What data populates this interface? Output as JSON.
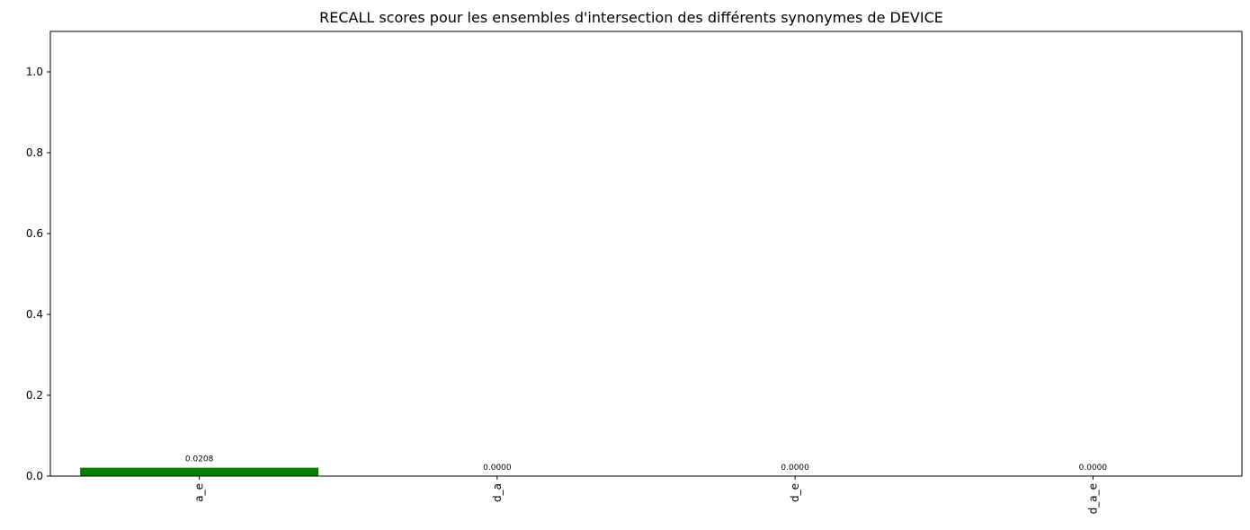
{
  "chart_data": {
    "type": "bar",
    "title": "RECALL scores pour les ensembles d'intersection des différents synonymes de DEVICE",
    "xlabel": "",
    "ylabel": "",
    "categories": [
      "a_e",
      "d_a",
      "d_e",
      "d_a_e"
    ],
    "values": [
      0.0208,
      0.0,
      0.0,
      0.0
    ],
    "data_labels": [
      "0.0208",
      "0.0000",
      "0.0000",
      "0.0000"
    ],
    "ylim": [
      0,
      1.1
    ],
    "yticks": [
      0.0,
      0.2,
      0.4,
      0.6,
      0.8,
      1.0
    ],
    "ytick_labels": [
      "0.0",
      "0.2",
      "0.4",
      "0.6",
      "0.8",
      "1.0"
    ],
    "bar_color": "#008000",
    "grid": false,
    "legend": "none"
  }
}
